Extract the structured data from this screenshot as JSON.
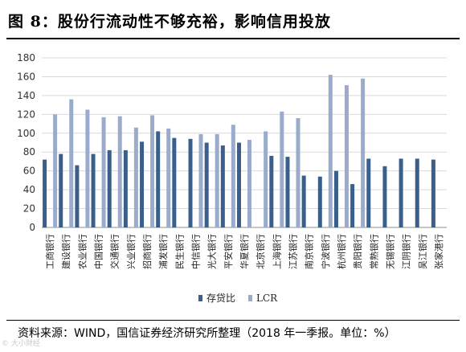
{
  "header": {
    "title": "图 8：股份行流动性不够充裕，影响信用投放"
  },
  "footer": {
    "source": "资料来源：WIND，国信证券经济研究所整理（2018 年一季报。单位：%）",
    "watermark": "© 大小财经"
  },
  "colors": {
    "loan_deposit": "#3a5f8a",
    "lcr": "#9aabcc",
    "grid": "#d9d9d9",
    "axis": "#8c8c8c"
  },
  "chart_data": {
    "type": "bar",
    "title": "",
    "xlabel": "",
    "ylabel": "",
    "ylim": [
      0,
      180
    ],
    "yticks": [
      0,
      20,
      40,
      60,
      80,
      100,
      120,
      140,
      160,
      180
    ],
    "grid": true,
    "legend": "bottom-center",
    "categories": [
      "工商银行",
      "建设银行",
      "农业银行",
      "中国银行",
      "交通银行",
      "兴业银行",
      "招商银行",
      "浦发银行",
      "民生银行",
      "中信银行",
      "光大银行",
      "平安银行",
      "华夏银行",
      "北京银行",
      "上海银行",
      "江苏银行",
      "南京银行",
      "宁波银行",
      "杭州银行",
      "贵阳银行",
      "常熟银行",
      "无锡银行",
      "江阴银行",
      "吴江银行",
      "张家港行"
    ],
    "series": [
      {
        "name": "存贷比",
        "values": [
          72,
          78,
          66,
          78,
          82,
          82,
          91,
          102,
          95,
          94,
          90,
          87,
          90,
          null,
          76,
          75,
          55,
          54,
          60,
          46,
          73,
          65,
          73,
          73,
          72
        ]
      },
      {
        "name": "LCR",
        "values": [
          120,
          136,
          125,
          117,
          118,
          106,
          119,
          105,
          null,
          99,
          99,
          109,
          93,
          102,
          123,
          116,
          null,
          162,
          151,
          158,
          null,
          null,
          null,
          null,
          null
        ]
      }
    ]
  }
}
